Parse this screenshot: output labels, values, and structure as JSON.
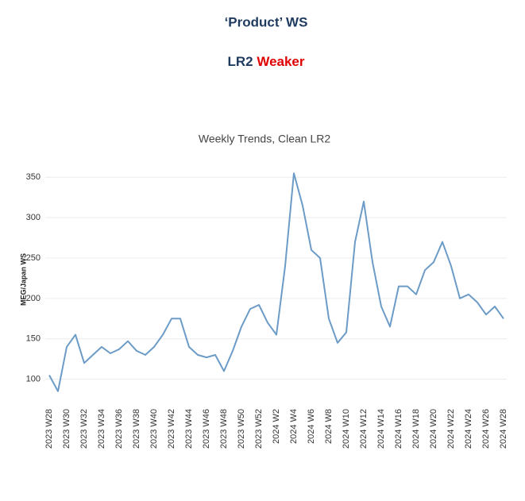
{
  "header": {
    "title": "‘Product’ WS",
    "subtitle_prefix": "LR2",
    "subtitle_emphasis": "Weaker"
  },
  "chart_data": {
    "type": "line",
    "title": "Weekly Trends, Clean LR2",
    "ylabel": "MEG/Japan WS",
    "categories": [
      "2023 W28",
      null,
      "2023 W30",
      null,
      "2023 W32",
      null,
      "2023 W34",
      null,
      "2023 W36",
      null,
      "2023 W38",
      null,
      "2023 W40",
      null,
      "2023 W42",
      null,
      "2023 W44",
      null,
      "2023 W46",
      null,
      "2023 W48",
      null,
      "2023 W50",
      null,
      "2023 W52",
      null,
      "2024 W2",
      null,
      "2024 W4",
      null,
      "2024 W6",
      null,
      "2024 W8",
      null,
      "2024 W10",
      null,
      "2024 W12",
      null,
      "2024 W14",
      null,
      "2024 W16",
      null,
      "2024 W18",
      null,
      "2024 W20",
      null,
      "2024 W22",
      null,
      "2024 W24",
      null,
      "2024 W26",
      null,
      "2024 W28"
    ],
    "series": [
      {
        "name": "Clean LR2",
        "color": "#6b9bc6",
        "values": [
          105,
          85,
          140,
          155,
          120,
          130,
          140,
          132,
          137,
          147,
          135,
          130,
          140,
          155,
          175,
          175,
          140,
          130,
          127,
          130,
          110,
          135,
          165,
          187,
          192,
          170,
          155,
          240,
          355,
          315,
          260,
          250,
          175,
          145,
          158,
          270,
          320,
          245,
          190,
          165,
          215,
          215,
          205,
          235,
          245,
          270,
          240,
          200,
          205,
          195,
          180,
          190,
          175
        ]
      }
    ],
    "ylim": [
      73,
      368
    ],
    "yticks": [
      100,
      150,
      200,
      250,
      300,
      350
    ],
    "grid": true
  }
}
